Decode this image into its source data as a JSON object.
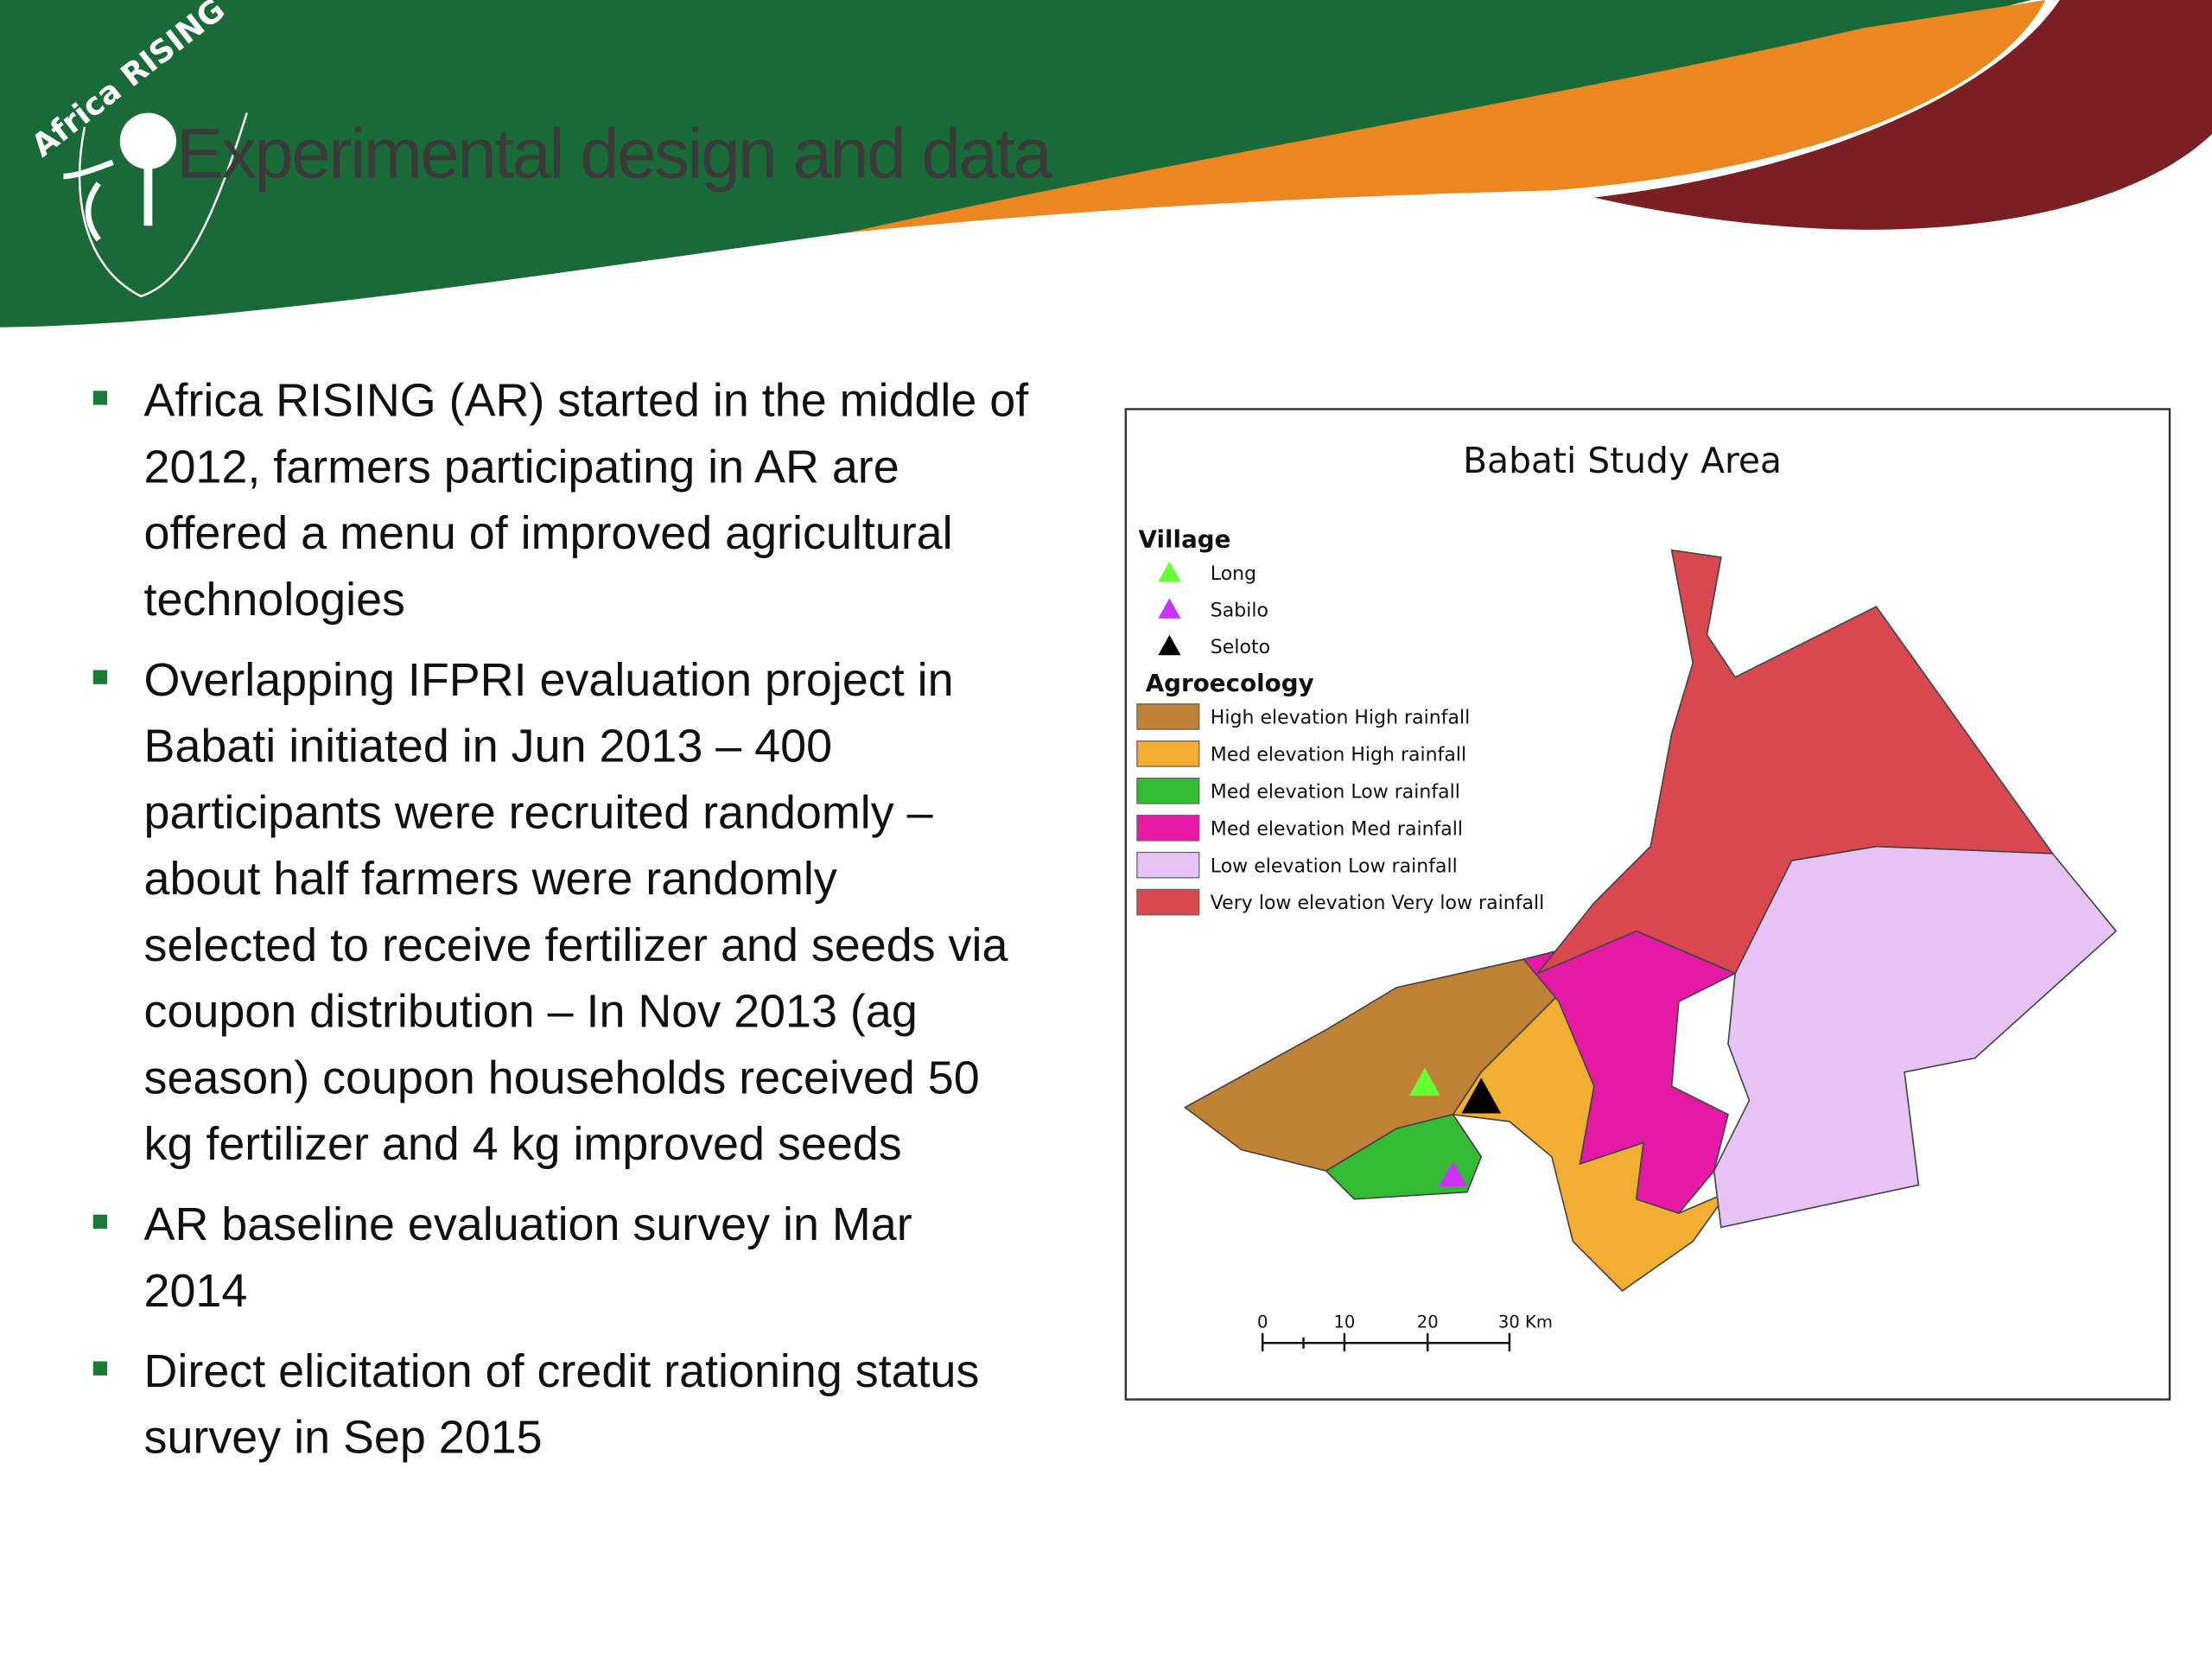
{
  "header": {
    "logo": "Africa RISING",
    "title": "Experimental design and data"
  },
  "bullets": [
    [
      "Africa RISING (AR) started in the middle of",
      "2012, farmers participating in AR are",
      "offered a menu of improved agricultural",
      "technologies"
    ],
    [
      "Overlapping IFPRI evaluation project in",
      "Babati initiated in Jun 2013 – 400",
      "participants were recruited randomly –",
      "about half farmers were randomly",
      "selected to receive fertilizer and seeds via",
      "coupon distribution – In Nov 2013 (ag",
      "season) coupon households received 50",
      "kg fertilizer and 4 kg improved seeds"
    ],
    [
      "AR baseline evaluation survey in Mar",
      "2014"
    ],
    [
      "Direct elicitation of credit rationing status",
      "survey in Sep 2015"
    ]
  ],
  "map": {
    "title": "Babati Study Area",
    "village_heading": "Village",
    "villages": [
      {
        "label": "Long",
        "color": "#66ff33"
      },
      {
        "label": "Sabilo",
        "color": "#cc33ff"
      },
      {
        "label": "Seloto",
        "color": "#000000"
      }
    ],
    "agroecology_heading": "Agroecology",
    "zones": [
      {
        "label": "High elevation High rainfall",
        "color": "#bf8136"
      },
      {
        "label": "Med elevation High rainfall",
        "color": "#f2ae33"
      },
      {
        "label": "Med elevation Low rainfall",
        "color": "#33bb33"
      },
      {
        "label": "Med elevation Med rainfall",
        "color": "#e619a6"
      },
      {
        "label": "Low elevation Low rainfall",
        "color": "#e6c2f5"
      },
      {
        "label": "Very low elevation Very low rainfall",
        "color": "#d9484f"
      }
    ],
    "scale": [
      "0",
      "10",
      "20",
      "30 Km"
    ]
  }
}
